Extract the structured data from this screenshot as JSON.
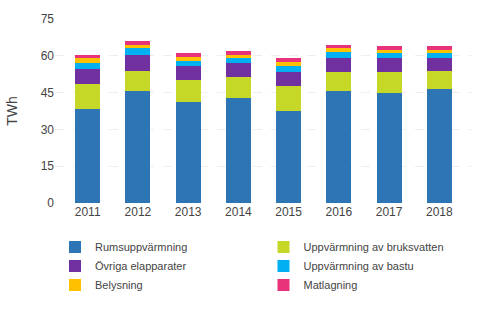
{
  "chart_data": {
    "type": "bar",
    "stacked": true,
    "categories": [
      "2011",
      "2012",
      "2013",
      "2014",
      "2015",
      "2016",
      "2017",
      "2018"
    ],
    "series": [
      {
        "name": "Rumsuppvärmning",
        "color": "#2e75b6",
        "values": [
          38.5,
          45.5,
          41.0,
          43.0,
          37.5,
          45.5,
          45.0,
          46.5
        ]
      },
      {
        "name": "Uppvärmning av bruksvatten",
        "color": "#c5d827",
        "values": [
          10.0,
          8.5,
          9.0,
          8.5,
          10.0,
          8.0,
          8.5,
          7.5
        ]
      },
      {
        "name": "Övriga elapparater",
        "color": "#7030a0",
        "values": [
          6.0,
          6.5,
          6.0,
          5.5,
          6.0,
          5.5,
          5.5,
          5.0
        ]
      },
      {
        "name": "Uppvärmning av bastu",
        "color": "#00b0f0",
        "values": [
          2.5,
          2.5,
          2.0,
          2.0,
          2.5,
          2.5,
          2.0,
          2.0
        ]
      },
      {
        "name": "Belysning",
        "color": "#ffc000",
        "values": [
          2.0,
          1.5,
          1.5,
          1.5,
          1.5,
          1.5,
          1.5,
          1.5
        ]
      },
      {
        "name": "Matlagning",
        "color": "#e8327a",
        "values": [
          1.5,
          1.5,
          1.5,
          1.5,
          1.5,
          1.5,
          1.5,
          1.5
        ]
      }
    ],
    "ylabel": "TWh",
    "ylim": [
      0,
      75
    ],
    "yticks": [
      0,
      15,
      30,
      45,
      60,
      75
    ],
    "grid": true,
    "legend": "bottom"
  }
}
